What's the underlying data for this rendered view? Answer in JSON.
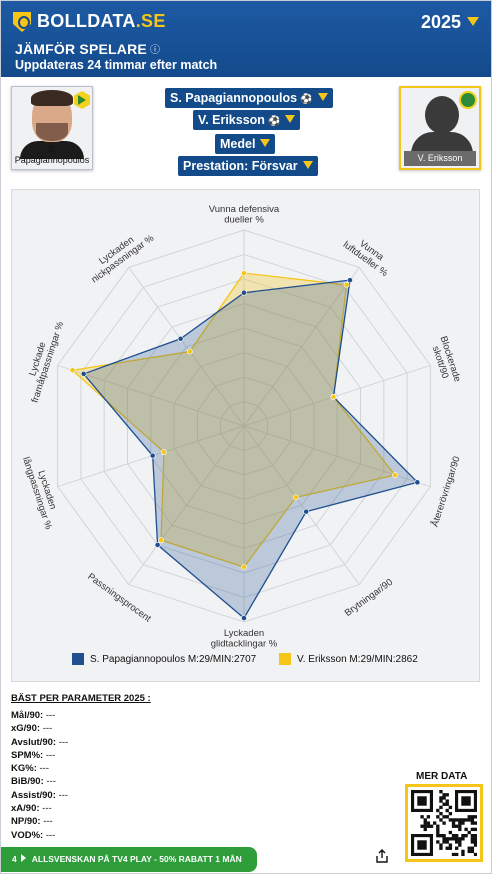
{
  "header": {
    "logo_main": "BOLLDATA",
    "logo_suffix": ".SE",
    "season": "2025",
    "title": "JÄMFÖR SPELARE",
    "info_icon": "ⓘ",
    "subtitle": "Uppdateras 24 timmar efter match"
  },
  "players": {
    "left": {
      "name": "S. Papagiannopoulos",
      "photo_icon": "player-photo",
      "badge_icon": "club-badge-aik"
    },
    "right": {
      "name": "V. Eriksson",
      "photo_icon": "silhouette-placeholder",
      "badge_icon": "club-badge-hammarby"
    }
  },
  "selectors": {
    "player1": "S. Papagiannopoulos",
    "player1_icon": "⚽",
    "player2": "V. Eriksson",
    "player2_icon": "⚽",
    "mode": "Medel",
    "category": "Prestation: Försvar"
  },
  "chart_data": {
    "type": "radar",
    "axes": [
      "Vunna defensiva dueller %",
      "Vunna luftdueller %",
      "Blockerade skott/90",
      "Återerövringar/90",
      "Brytningar/90",
      "Lyckaden glidtacklingar %",
      "Passningsprocent",
      "Lyckaden långpassningar %",
      "Lyckade framåtpassningar %",
      "Lyckaden nickpassningar %"
    ],
    "axis_label_lines": [
      [
        "Vunna defensiva",
        "dueller %"
      ],
      [
        "Vunna",
        "luftdueller %"
      ],
      [
        "Blockerade",
        "skott/90"
      ],
      [
        "Återerövringar/90"
      ],
      [
        "Brytningar/90"
      ],
      [
        "Lyckaden",
        "glidtacklingar %"
      ],
      [
        "Passningsprocent"
      ],
      [
        "Lyckaden",
        "långpassningar %"
      ],
      [
        "Lyckade",
        "framåtpassningar %"
      ],
      [
        "Lyckaden",
        "nickpassningar %"
      ]
    ],
    "series": [
      {
        "name": "S. Papagiannopoulos M:29/MIN:2707",
        "color": "#1f4f8f",
        "values": [
          0.68,
          0.92,
          0.48,
          0.93,
          0.54,
          0.98,
          0.75,
          0.49,
          0.86,
          0.55
        ]
      },
      {
        "name": "V. Eriksson M:29/MIN:2862",
        "color": "#f5c518",
        "values": [
          0.78,
          0.89,
          0.48,
          0.81,
          0.45,
          0.72,
          0.72,
          0.43,
          0.92,
          0.47
        ]
      }
    ],
    "range": [
      0,
      1
    ],
    "grid_rings": 8,
    "legend_position": "bottom"
  },
  "stats": {
    "title": "BÄST PER PARAMETER 2025 :",
    "rows": [
      {
        "key": "Mål/90:",
        "value": "---"
      },
      {
        "key": "xG/90:",
        "value": "---"
      },
      {
        "key": "Avslut/90:",
        "value": "---"
      },
      {
        "key": "SPM%:",
        "value": "---"
      },
      {
        "key": "KG%:",
        "value": "---"
      },
      {
        "key": "BiB/90:",
        "value": "---"
      },
      {
        "key": "Assist/90:",
        "value": "---"
      },
      {
        "key": "xA/90:",
        "value": "---"
      },
      {
        "key": "NP/90:",
        "value": "---"
      },
      {
        "key": "VOD%:",
        "value": "---"
      }
    ]
  },
  "more": {
    "label": "MER DATA",
    "qr_icon": "qr-code"
  },
  "promo": {
    "number": "4",
    "text": "ALLSVENSKAN PÅ TV4 PLAY - 50% RABATT 1 MÅN"
  },
  "share": {
    "icon": "share-icon"
  },
  "colors": {
    "brand_blue": "#144a8c",
    "accent_yellow": "#f5c518",
    "promo_green": "#2e9d3a"
  }
}
